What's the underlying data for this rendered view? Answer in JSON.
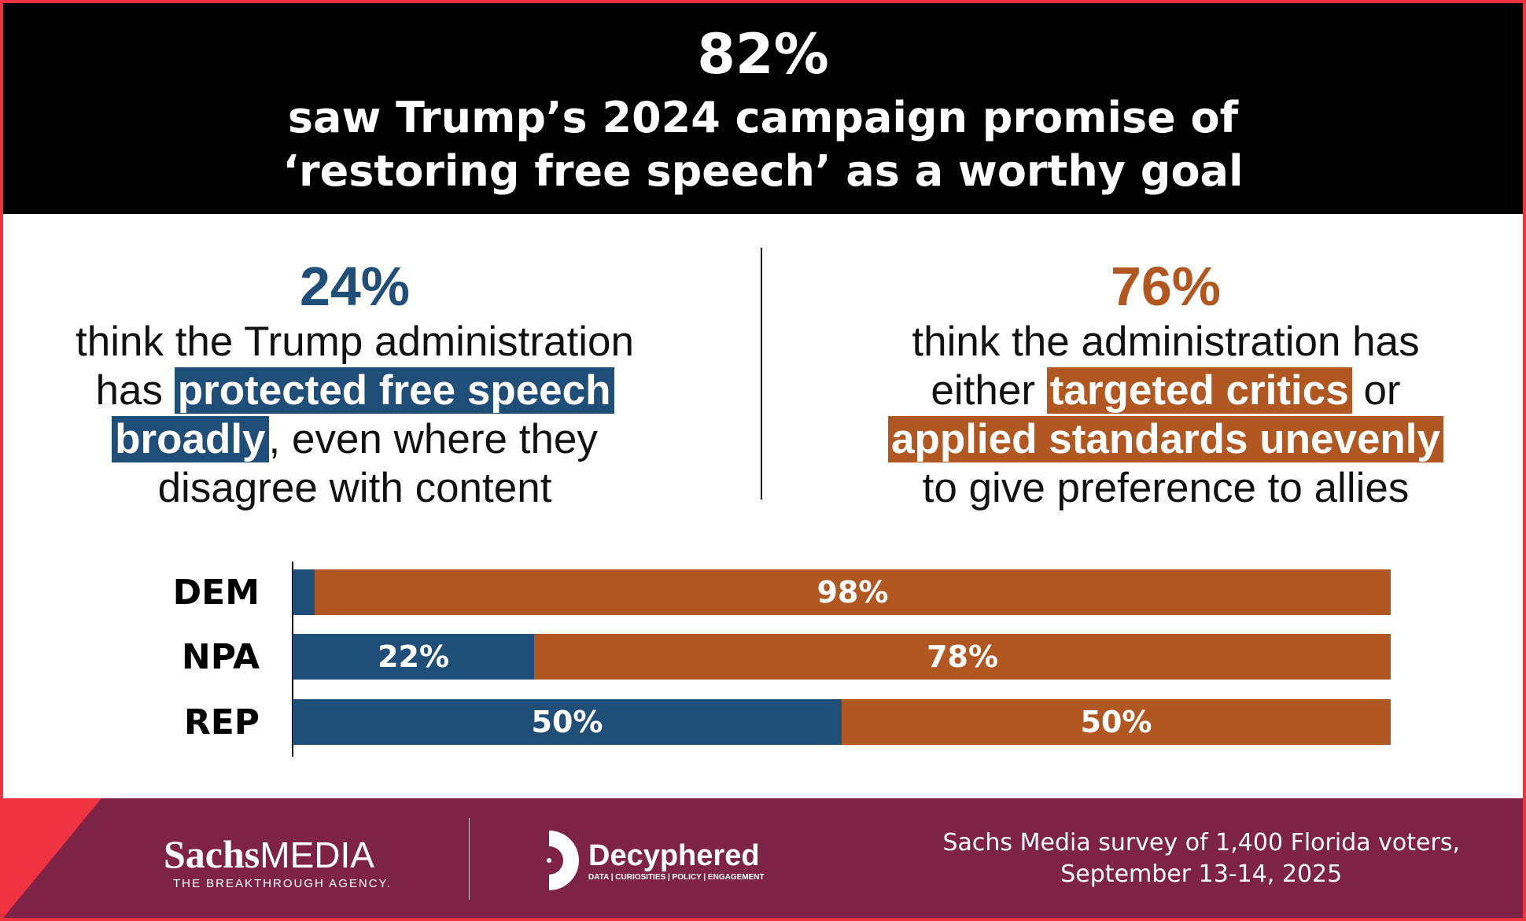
{
  "headline": {
    "percent": "82%",
    "line1": "saw Trump’s 2024 campaign promise of",
    "line2": "‘restoring free speech’ as a worthy goal"
  },
  "left": {
    "percent": "24%",
    "l1": "think the Trump administration",
    "l2a": "has ",
    "l2b": "protected free speech ",
    "l3a": "broadly",
    "l3b": ", even where they",
    "l4": "disagree with content"
  },
  "right": {
    "percent": "76%",
    "l1": "think the administration has",
    "l2a": "either ",
    "l2b": "targeted critics",
    "l2c": " or",
    "l3": "applied standards unevenly",
    "l4": "to give preference to allies"
  },
  "colors": {
    "blue": "#1f4e79",
    "orange": "#b05722",
    "maroon": "#7f2346",
    "red": "#ef3340"
  },
  "chart_data": {
    "type": "bar",
    "stacked": true,
    "orientation": "horizontal",
    "categories": [
      "DEM",
      "NPA",
      "REP"
    ],
    "series": [
      {
        "name": "protected free speech broadly",
        "color": "#1f4e79",
        "values": [
          2,
          22,
          50
        ],
        "labels": [
          "",
          "22%",
          "50%"
        ]
      },
      {
        "name": "targeted critics or applied standards unevenly",
        "color": "#b05722",
        "values": [
          98,
          78,
          50
        ],
        "labels": [
          "98%",
          "78%",
          "50%"
        ]
      }
    ],
    "xlim": [
      0,
      100
    ]
  },
  "footer": {
    "sachs_bold": "Sachs",
    "sachs_thin": "MEDIA",
    "sachs_tag": "THE BREAKTHROUGH AGENCY.",
    "decyphered": "Decyphered",
    "decyphered_tag": "DATA | CURIOSITIES | POLICY | ENGAGEMENT",
    "source1": "Sachs Media survey of 1,400 Florida voters,",
    "source2": "September 13-14, 2025"
  }
}
